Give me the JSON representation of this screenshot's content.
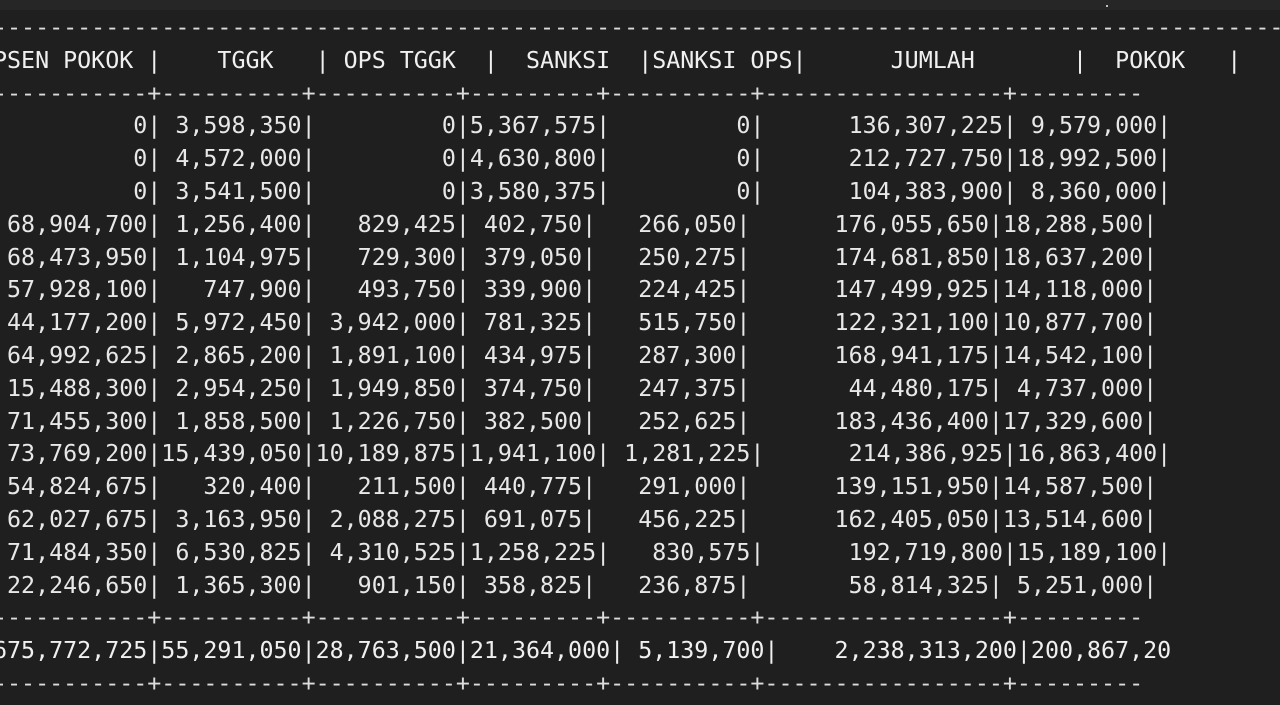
{
  "terminal": {
    "top_border": "-----------------------------------------------------------------------------------------------------------------------+-------",
    "header": "PSEN POKOK |    TGGK   | OPS TGGK  |  SANKSI  |SANKSI OPS|      JUMLAH       |  POKOK   |",
    "separator": "-----------+----------+----------+---------+----------+-----------------+---------",
    "rows": [
      "          0| 3,598,350|         0|5,367,575|         0|      136,307,225| 9,579,000|",
      "          0| 4,572,000|         0|4,630,800|         0|      212,727,750|18,992,500|",
      "          0| 3,541,500|         0|3,580,375|         0|      104,383,900| 8,360,000|",
      " 68,904,700| 1,256,400|   829,425| 402,750|   266,050|      176,055,650|18,288,500|",
      " 68,473,950| 1,104,975|   729,300| 379,050|   250,275|      174,681,850|18,637,200|",
      " 57,928,100|   747,900|   493,750| 339,900|   224,425|      147,499,925|14,118,000|",
      " 44,177,200| 5,972,450| 3,942,000| 781,325|   515,750|      122,321,100|10,877,700|",
      " 64,992,625| 2,865,200| 1,891,100| 434,975|   287,300|      168,941,175|14,542,100|",
      " 15,488,300| 2,954,250| 1,949,850| 374,750|   247,375|       44,480,175| 4,737,000|",
      " 71,455,300| 1,858,500| 1,226,750| 382,500|   252,625|      183,436,400|17,329,600|",
      " 73,769,200|15,439,050|10,189,875|1,941,100| 1,281,225|      214,386,925|16,863,400|",
      " 54,824,675|   320,400|   211,500| 440,775|   291,000|      139,151,950|14,587,500|",
      " 62,027,675| 3,163,950| 2,088,275| 691,075|   456,225|      162,405,050|13,514,600|",
      " 71,484,350| 6,530,825| 4,310,525|1,258,225|   830,575|      192,719,800|15,189,100|",
      " 22,246,650| 1,365,300|   901,150| 358,825|   236,875|       58,814,325| 5,251,000|"
    ],
    "total": "675,772,725|55,291,050|28,763,500|21,364,000| 5,139,700|    2,238,313,200|200,867,20"
  }
}
